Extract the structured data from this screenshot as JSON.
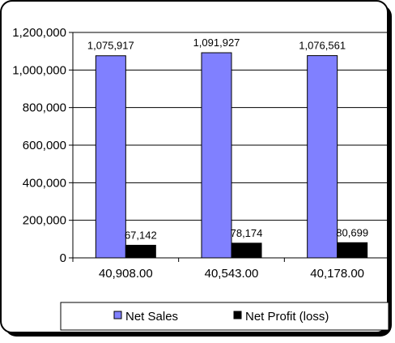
{
  "chart_data": {
    "type": "bar",
    "categories": [
      "40,908.00",
      "40,543.00",
      "40,178.00"
    ],
    "series": [
      {
        "name": "Net Sales",
        "values": [
          1075917,
          1091927,
          1076561
        ],
        "data_labels": [
          "1,075,917",
          "1,091,927",
          "1,076,561"
        ],
        "color": "#8080ff"
      },
      {
        "name": "Net Profit (loss)",
        "values": [
          67142,
          78174,
          80699
        ],
        "data_labels": [
          "67,142",
          "78,174",
          "80,699"
        ],
        "color": "#000000"
      }
    ],
    "y_ticks": [
      "0",
      "200,000",
      "400,000",
      "600,000",
      "800,000",
      "1,000,000",
      "1,200,000"
    ],
    "ylim": [
      0,
      1200000
    ],
    "grid": true,
    "legend_position": "bottom-right",
    "title": "",
    "xlabel": "",
    "ylabel": ""
  }
}
